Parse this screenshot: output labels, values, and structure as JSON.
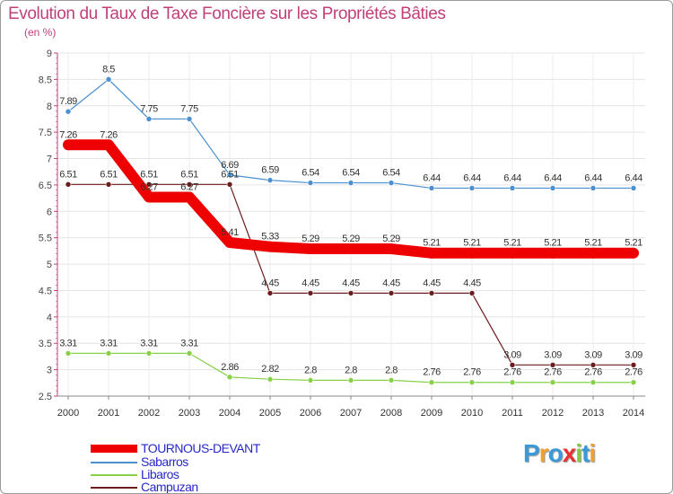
{
  "title": "Evolution du Taux de Taxe Foncière sur les Propriétés Bâties",
  "subtitle": "(en %)",
  "logo_text": "Proxiti",
  "chart_data": {
    "type": "line",
    "title": "Evolution du Taux de Taxe Foncière sur les Propriétés Bâties",
    "ylabel": "(en %)",
    "xlabel": "",
    "ylim": [
      2.5,
      9
    ],
    "yticks": [
      "2.5",
      "3",
      "3.5",
      "4",
      "4.5",
      "5",
      "5.5",
      "6",
      "6.5",
      "7",
      "7.5",
      "8",
      "8.5",
      "9"
    ],
    "x": [
      "2000",
      "2001",
      "2002",
      "2003",
      "2004",
      "2005",
      "2006",
      "2007",
      "2008",
      "2009",
      "2010",
      "2011",
      "2012",
      "2013",
      "2014"
    ],
    "series": [
      {
        "name": "TOURNOUS-DEVANT",
        "color": "#ee0000",
        "values": [
          7.26,
          7.26,
          6.27,
          6.27,
          5.41,
          5.33,
          5.29,
          5.29,
          5.29,
          5.21,
          5.21,
          5.21,
          5.21,
          5.21,
          5.21
        ],
        "labels": [
          "7.26",
          "7.26",
          "6.27",
          "6.27",
          "5.41",
          "5.33",
          "5.29",
          "5.29",
          "5.29",
          "5.21",
          "5.21",
          "5.21",
          "5.21",
          "5.21",
          "5.21"
        ]
      },
      {
        "name": "Sabarros",
        "color": "#4a8fd0",
        "values": [
          7.89,
          8.5,
          7.75,
          7.75,
          6.69,
          6.59,
          6.54,
          6.54,
          6.54,
          6.44,
          6.44,
          6.44,
          6.44,
          6.44,
          6.44
        ],
        "labels": [
          "7.89",
          "8.5",
          "7.75",
          "7.75",
          "6.69",
          "6.59",
          "6.54",
          "6.54",
          "6.54",
          "6.44",
          "6.44",
          "6.44",
          "6.44",
          "6.44",
          "6.44"
        ]
      },
      {
        "name": "Libaros",
        "color": "#88d048",
        "values": [
          3.31,
          3.31,
          3.31,
          3.31,
          2.86,
          2.82,
          2.8,
          2.8,
          2.8,
          2.76,
          2.76,
          2.76,
          2.76,
          2.76,
          2.76
        ],
        "labels": [
          "3.31",
          "3.31",
          "3.31",
          "3.31",
          "2.86",
          "2.82",
          "2.8",
          "2.8",
          "2.8",
          "2.76",
          "2.76",
          "2.76",
          "2.76",
          "2.76",
          "2.76"
        ]
      },
      {
        "name": "Campuzan",
        "color": "#6b1c1c",
        "values": [
          6.51,
          6.51,
          6.51,
          6.51,
          6.51,
          4.45,
          4.45,
          4.45,
          4.45,
          4.45,
          4.45,
          3.09,
          3.09,
          3.09,
          3.09
        ],
        "labels": [
          "6.51",
          "6.51",
          "6.51",
          "6.51",
          "6.51",
          "4.45",
          "4.45",
          "4.45",
          "4.45",
          "4.45",
          "4.45",
          "3.09",
          "3.09",
          "3.09",
          "3.09"
        ]
      }
    ],
    "legend_position": "bottom-left"
  }
}
